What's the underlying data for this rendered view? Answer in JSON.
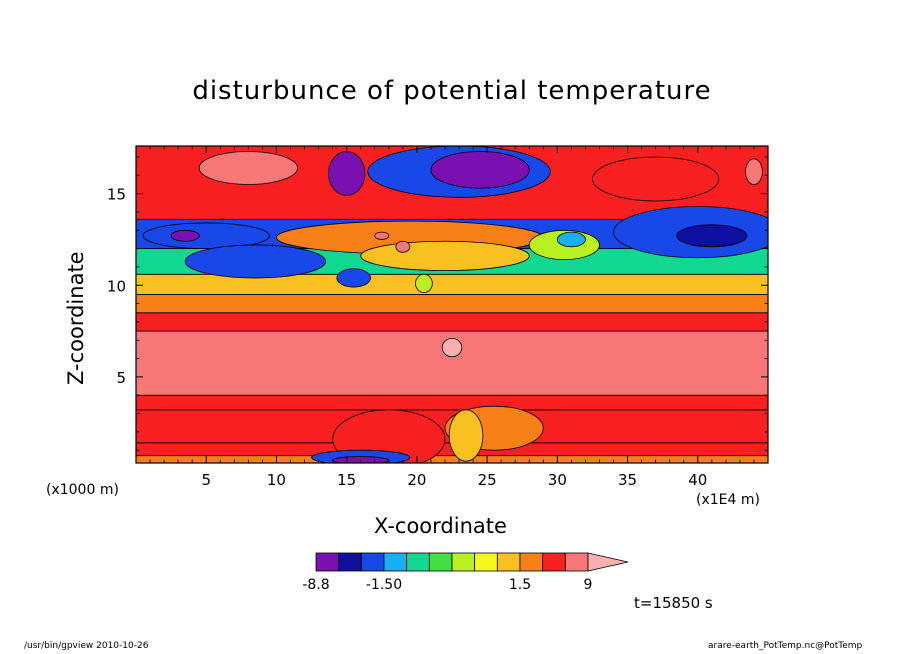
{
  "chart_data": {
    "type": "heatmap",
    "title": "disturbunce of potential temperature",
    "xlabel": "X-coordinate",
    "ylabel": "Z-coordinate",
    "x_unit_label": "(x1E4 m)",
    "y_unit_label": "(x1000 m)",
    "xlim": [
      0,
      45
    ],
    "ylim": [
      0.3,
      17.6
    ],
    "x_ticks": [
      5,
      10,
      15,
      20,
      25,
      30,
      35,
      40
    ],
    "x_tick_labels": [
      "5",
      "10",
      "15",
      "20",
      "25",
      "30",
      "35",
      "40"
    ],
    "y_ticks": [
      5,
      10,
      15
    ],
    "y_tick_labels": [
      "5",
      "10",
      "15"
    ],
    "time_label": "t=15850 s",
    "colorbar": {
      "levels": [
        -8.8,
        -6.6,
        -4.4,
        -1.5,
        -1.0,
        -0.5,
        0,
        0.5,
        1.0,
        1.5,
        4.5,
        7.5,
        9
      ],
      "labels": [
        "-8.8",
        "-1.50",
        "1.5",
        "9"
      ],
      "label_values": [
        -8.8,
        -1.5,
        1.5,
        9
      ],
      "colors": [
        "#ee00aa",
        "#7a10b0",
        "#1010a0",
        "#1848e8",
        "#18b0f0",
        "#10d890",
        "#40e040",
        "#b8f020",
        "#f8f818",
        "#f8c020",
        "#f88018",
        "#f82020",
        "#f87878",
        "#f8b0b0"
      ]
    },
    "bands": [
      {
        "z_low": 0.3,
        "z_high": 0.7,
        "value": 3.0
      },
      {
        "z_low": 0.7,
        "z_high": 1.4,
        "value": 4.5
      },
      {
        "z_low": 1.4,
        "z_high": 3.2,
        "value": 6.0
      },
      {
        "z_low": 3.2,
        "z_high": 4.0,
        "value": 7.0
      },
      {
        "z_low": 4.0,
        "z_high": 7.5,
        "value": 8.0
      },
      {
        "z_low": 7.5,
        "z_high": 8.5,
        "value": 6.0
      },
      {
        "z_low": 8.5,
        "z_high": 9.5,
        "value": 3.5
      },
      {
        "z_low": 9.5,
        "z_high": 10.6,
        "value": 1.2
      },
      {
        "z_low": 10.6,
        "z_high": 12.0,
        "value": -0.8
      },
      {
        "z_low": 12.0,
        "z_high": 13.6,
        "value": -3.0
      },
      {
        "z_low": 13.6,
        "z_high": 17.6,
        "value": 6.0
      }
    ],
    "features": [
      {
        "type": "ellipse",
        "cx": 8.0,
        "cz": 16.4,
        "rx": 3.5,
        "rz": 0.9,
        "value": 7.8
      },
      {
        "type": "ellipse",
        "cx": 5.0,
        "cz": 12.7,
        "rx": 4.5,
        "rz": 0.7,
        "value": -4.0
      },
      {
        "type": "ellipse",
        "cx": 3.5,
        "cz": 12.7,
        "rx": 1.0,
        "rz": 0.3,
        "value": -7.0
      },
      {
        "type": "ellipse",
        "cx": 8.5,
        "cz": 11.3,
        "rx": 5.0,
        "rz": 0.9,
        "value": -2.0
      },
      {
        "type": "ellipse",
        "cx": 15.5,
        "cz": 10.4,
        "rx": 1.2,
        "rz": 0.5,
        "value": -3.0
      },
      {
        "type": "ellipse",
        "cx": 20.5,
        "cz": 10.1,
        "rx": 0.6,
        "rz": 0.5,
        "value": 0.3
      },
      {
        "type": "ellipse",
        "cx": 23.0,
        "cz": 16.2,
        "rx": 6.5,
        "rz": 1.4,
        "value": -3.0
      },
      {
        "type": "ellipse",
        "cx": 19.5,
        "cz": 12.6,
        "rx": 9.5,
        "rz": 0.9,
        "value": 3.5
      },
      {
        "type": "ellipse",
        "cx": 22.0,
        "cz": 11.6,
        "rx": 6.0,
        "rz": 0.8,
        "value": 1.0
      },
      {
        "type": "ellipse",
        "cx": 15.0,
        "cz": 16.1,
        "rx": 1.3,
        "rz": 1.2,
        "value": -7.5
      },
      {
        "type": "ellipse",
        "cx": 24.5,
        "cz": 16.3,
        "rx": 3.5,
        "rz": 1.0,
        "value": -7.5
      },
      {
        "type": "ellipse",
        "cx": 30.5,
        "cz": 12.2,
        "rx": 2.5,
        "rz": 0.8,
        "value": 0.3
      },
      {
        "type": "ellipse",
        "cx": 31.0,
        "cz": 12.5,
        "rx": 1.0,
        "rz": 0.4,
        "value": -1.2
      },
      {
        "type": "ellipse",
        "cx": 40.0,
        "cz": 12.9,
        "rx": 6.0,
        "rz": 1.4,
        "value": -3.0
      },
      {
        "type": "ellipse",
        "cx": 41.0,
        "cz": 12.7,
        "rx": 2.5,
        "rz": 0.6,
        "value": -5.0
      },
      {
        "type": "ellipse",
        "cx": 37.0,
        "cz": 15.8,
        "rx": 4.5,
        "rz": 1.2,
        "value": 6.0
      },
      {
        "type": "ellipse",
        "cx": 44.0,
        "cz": 16.2,
        "rx": 0.6,
        "rz": 0.7,
        "value": 7.8
      },
      {
        "type": "ellipse",
        "cx": 22.5,
        "cz": 6.6,
        "rx": 0.7,
        "rz": 0.5,
        "value": 9.5
      },
      {
        "type": "ellipse",
        "cx": 17.5,
        "cz": 12.7,
        "rx": 0.5,
        "rz": 0.2,
        "value": 7.8
      },
      {
        "type": "ellipse",
        "cx": 19.0,
        "cz": 12.1,
        "rx": 0.5,
        "rz": 0.3,
        "value": 7.8
      },
      {
        "type": "ellipse",
        "cx": 25.5,
        "cz": 2.2,
        "rx": 3.5,
        "rz": 1.2,
        "value": 3.5
      },
      {
        "type": "ellipse",
        "cx": 23.5,
        "cz": 1.8,
        "rx": 1.2,
        "rz": 1.4,
        "value": 1.2
      },
      {
        "type": "ellipse",
        "cx": 18.0,
        "cz": 1.6,
        "rx": 4.0,
        "rz": 1.6,
        "value": 4.5
      },
      {
        "type": "ellipse",
        "cx": 16.0,
        "cz": 0.6,
        "rx": 3.5,
        "rz": 0.4,
        "value": -3.0
      },
      {
        "type": "ellipse",
        "cx": 16.0,
        "cz": 0.45,
        "rx": 2.0,
        "rz": 0.2,
        "value": -7.5
      }
    ]
  },
  "footer": {
    "left": "/usr/bin/gpview   2010-10-26",
    "right": "arare-earth_PotTemp.nc@PotTemp"
  }
}
